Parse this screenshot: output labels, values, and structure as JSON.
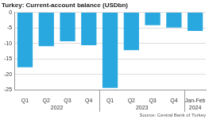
{
  "chart_data": {
    "type": "bar",
    "title": "Turkey: Current-account balance (USDbn)",
    "source": "Source: Central Bank of Turkey",
    "categories": [
      "Q1",
      "Q2",
      "Q3",
      "Q4",
      "Q1",
      "Q2",
      "Q3",
      "Q4",
      "Jan-Feb"
    ],
    "groups": [
      "2022",
      "2022",
      "2022",
      "2022",
      "2023",
      "2023",
      "2023",
      "2023",
      "2024"
    ],
    "values": [
      -17.7,
      -10.9,
      -9.3,
      -10.6,
      -24.3,
      -12.2,
      -4.1,
      -4.9,
      -6.0
    ],
    "color": "#29a8e0",
    "ylim": [
      -25,
      0
    ],
    "yticks": [
      -25,
      -20,
      -15,
      -10,
      -5,
      0
    ],
    "grid": true
  }
}
